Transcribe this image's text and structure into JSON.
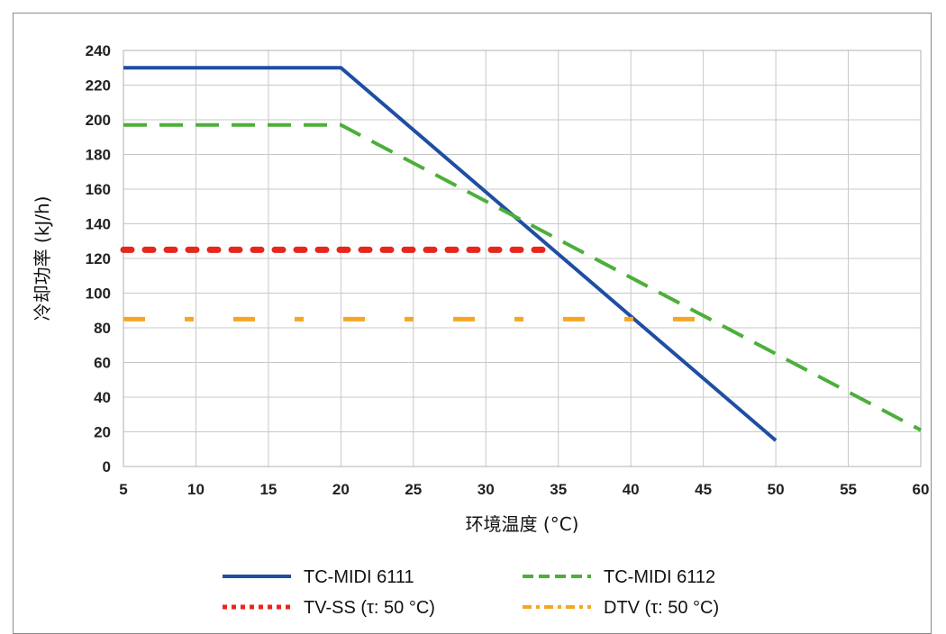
{
  "chart_data": {
    "type": "line",
    "xlabel": "环境温度 (°C)",
    "ylabel": "冷却功率 (kJ/h)",
    "xlim": [
      5,
      60
    ],
    "ylim": [
      0,
      240
    ],
    "x_ticks": [
      5,
      10,
      15,
      20,
      25,
      30,
      35,
      40,
      45,
      50,
      55,
      60
    ],
    "y_ticks": [
      0,
      20,
      40,
      60,
      80,
      100,
      120,
      140,
      160,
      180,
      200,
      220,
      240
    ],
    "grid": true,
    "legend_position": "bottom",
    "series": [
      {
        "name": "TC-MIDI 6111",
        "color": "#1f4ea3",
        "style": "solid",
        "x": [
          5,
          20,
          50
        ],
        "y": [
          230,
          230,
          15
        ]
      },
      {
        "name": "TC-MIDI 6112",
        "color": "#4caf3a",
        "style": "dashed",
        "x": [
          5,
          20,
          60
        ],
        "y": [
          197,
          197,
          21
        ]
      },
      {
        "name": "TV-SS (τ: 50 °C)",
        "color": "#e8261c",
        "style": "dotted",
        "x": [
          5,
          34
        ],
        "y": [
          125,
          125
        ]
      },
      {
        "name": "DTV (τ: 50 °C)",
        "color": "#f5a623",
        "style": "dashdot",
        "x": [
          5,
          45
        ],
        "y": [
          85,
          85
        ]
      }
    ]
  }
}
